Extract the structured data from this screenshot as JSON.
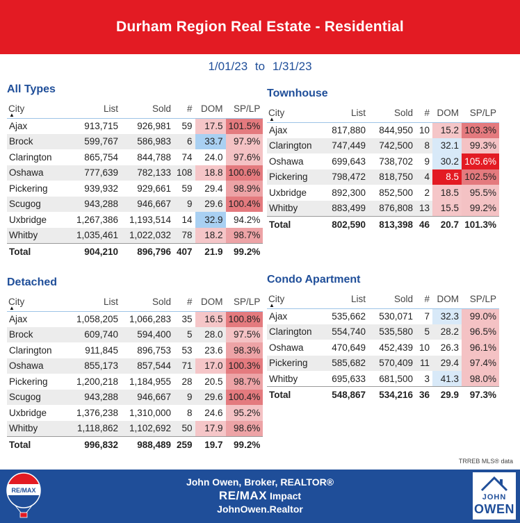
{
  "title": "Durham Region Real Estate - Residential",
  "date_from": "1/01/23",
  "date_to_word": "to",
  "date_to": "1/31/23",
  "columns": {
    "city": "City",
    "list": "List",
    "sold": "Sold",
    "count": "#",
    "dom": "DOM",
    "splp": "SP/LP"
  },
  "all_types": {
    "title": "All Types",
    "rows": [
      {
        "city": "Ajax",
        "list": "913,715",
        "sold": "926,981",
        "count": "59",
        "dom": "17.5",
        "splp": "101.5%",
        "dom_c": "dom-hi",
        "sp_c": "sp-3"
      },
      {
        "city": "Brock",
        "list": "599,767",
        "sold": "586,983",
        "count": "6",
        "dom": "33.7",
        "splp": "97.9%",
        "dom_c": "dom-lo",
        "sp_c": "sp-1"
      },
      {
        "city": "Clarington",
        "list": "865,754",
        "sold": "844,788",
        "count": "74",
        "dom": "24.0",
        "splp": "97.6%",
        "dom_c": "",
        "sp_c": "sp-1"
      },
      {
        "city": "Oshawa",
        "list": "777,639",
        "sold": "782,133",
        "count": "108",
        "dom": "18.8",
        "splp": "100.6%",
        "dom_c": "dom-hi",
        "sp_c": "sp-3"
      },
      {
        "city": "Pickering",
        "list": "939,932",
        "sold": "929,661",
        "count": "59",
        "dom": "29.4",
        "splp": "98.9%",
        "dom_c": "",
        "sp_c": "sp-2"
      },
      {
        "city": "Scugog",
        "list": "943,288",
        "sold": "946,667",
        "count": "9",
        "dom": "29.6",
        "splp": "100.4%",
        "dom_c": "",
        "sp_c": "sp-3"
      },
      {
        "city": "Uxbridge",
        "list": "1,267,386",
        "sold": "1,193,514",
        "count": "14",
        "dom": "32.9",
        "splp": "94.2%",
        "dom_c": "dom-lo",
        "sp_c": ""
      },
      {
        "city": "Whitby",
        "list": "1,035,461",
        "sold": "1,022,032",
        "count": "78",
        "dom": "18.2",
        "splp": "98.7%",
        "dom_c": "dom-hi",
        "sp_c": "sp-2"
      }
    ],
    "total": {
      "city": "Total",
      "list": "904,210",
      "sold": "896,796",
      "count": "407",
      "dom": "21.9",
      "splp": "99.2%"
    }
  },
  "detached": {
    "title": "Detached",
    "rows": [
      {
        "city": "Ajax",
        "list": "1,058,205",
        "sold": "1,066,283",
        "count": "35",
        "dom": "16.5",
        "splp": "100.8%",
        "dom_c": "dom-hi",
        "sp_c": "sp-3"
      },
      {
        "city": "Brock",
        "list": "609,740",
        "sold": "594,400",
        "count": "5",
        "dom": "28.0",
        "splp": "97.5%",
        "dom_c": "",
        "sp_c": "sp-1"
      },
      {
        "city": "Clarington",
        "list": "911,845",
        "sold": "896,753",
        "count": "53",
        "dom": "23.6",
        "splp": "98.3%",
        "dom_c": "",
        "sp_c": "sp-2"
      },
      {
        "city": "Oshawa",
        "list": "855,173",
        "sold": "857,544",
        "count": "71",
        "dom": "17.0",
        "splp": "100.3%",
        "dom_c": "dom-hi",
        "sp_c": "sp-3"
      },
      {
        "city": "Pickering",
        "list": "1,200,218",
        "sold": "1,184,955",
        "count": "28",
        "dom": "20.5",
        "splp": "98.7%",
        "dom_c": "",
        "sp_c": "sp-2"
      },
      {
        "city": "Scugog",
        "list": "943,288",
        "sold": "946,667",
        "count": "9",
        "dom": "29.6",
        "splp": "100.4%",
        "dom_c": "",
        "sp_c": "sp-3"
      },
      {
        "city": "Uxbridge",
        "list": "1,376,238",
        "sold": "1,310,000",
        "count": "8",
        "dom": "24.6",
        "splp": "95.2%",
        "dom_c": "",
        "sp_c": "sp-1"
      },
      {
        "city": "Whitby",
        "list": "1,118,862",
        "sold": "1,102,692",
        "count": "50",
        "dom": "17.9",
        "splp": "98.6%",
        "dom_c": "dom-hi",
        "sp_c": "sp-2"
      }
    ],
    "total": {
      "city": "Total",
      "list": "996,832",
      "sold": "988,489",
      "count": "259",
      "dom": "19.7",
      "splp": "99.2%"
    }
  },
  "townhouse": {
    "title": "Townhouse",
    "rows": [
      {
        "city": "Ajax",
        "list": "817,880",
        "sold": "844,950",
        "count": "10",
        "dom": "15.2",
        "splp": "103.3%",
        "dom_c": "dom-hi",
        "sp_c": "sp-3"
      },
      {
        "city": "Clarington",
        "list": "747,449",
        "sold": "742,500",
        "count": "8",
        "dom": "32.1",
        "splp": "99.3%",
        "dom_c": "dom-lo2",
        "sp_c": "sp-1"
      },
      {
        "city": "Oshawa",
        "list": "699,643",
        "sold": "738,702",
        "count": "9",
        "dom": "30.2",
        "splp": "105.6%",
        "dom_c": "dom-lo2",
        "sp_c": "sp-4"
      },
      {
        "city": "Pickering",
        "list": "798,472",
        "sold": "818,750",
        "count": "4",
        "dom": "8.5",
        "splp": "102.5%",
        "dom_c": "dom-red",
        "sp_c": "sp-3"
      },
      {
        "city": "Uxbridge",
        "list": "892,300",
        "sold": "852,500",
        "count": "2",
        "dom": "18.5",
        "splp": "95.5%",
        "dom_c": "dom-hi",
        "sp_c": "sp-1"
      },
      {
        "city": "Whitby",
        "list": "883,499",
        "sold": "876,808",
        "count": "13",
        "dom": "15.5",
        "splp": "99.2%",
        "dom_c": "dom-hi",
        "sp_c": "sp-1"
      }
    ],
    "total": {
      "city": "Total",
      "list": "802,590",
      "sold": "813,398",
      "count": "46",
      "dom": "20.7",
      "splp": "101.3%"
    }
  },
  "condo": {
    "title": "Condo Apartment",
    "rows": [
      {
        "city": "Ajax",
        "list": "535,662",
        "sold": "530,071",
        "count": "7",
        "dom": "32.3",
        "splp": "99.0%",
        "dom_c": "dom-lo2",
        "sp_c": "sp-1"
      },
      {
        "city": "Clarington",
        "list": "554,740",
        "sold": "535,580",
        "count": "5",
        "dom": "28.2",
        "splp": "96.5%",
        "dom_c": "",
        "sp_c": "sp-1"
      },
      {
        "city": "Oshawa",
        "list": "470,649",
        "sold": "452,439",
        "count": "10",
        "dom": "26.3",
        "splp": "96.1%",
        "dom_c": "",
        "sp_c": "sp-1"
      },
      {
        "city": "Pickering",
        "list": "585,682",
        "sold": "570,409",
        "count": "11",
        "dom": "29.4",
        "splp": "97.4%",
        "dom_c": "",
        "sp_c": "sp-1"
      },
      {
        "city": "Whitby",
        "list": "695,633",
        "sold": "681,500",
        "count": "3",
        "dom": "41.3",
        "splp": "98.0%",
        "dom_c": "dom-lo2",
        "sp_c": "sp-1"
      }
    ],
    "total": {
      "city": "Total",
      "list": "548,867",
      "sold": "534,216",
      "count": "36",
      "dom": "29.9",
      "splp": "97.3%"
    }
  },
  "mls_note": "TRREB MLS® data",
  "footer": {
    "line1": "John Owen, Broker, REALTOR®",
    "brand": "RE/MAX",
    "brand_suffix": "Impact",
    "line3": "JohnOwen.Realtor"
  },
  "logo_left_text": "RE/MAX",
  "logo_right": {
    "john": "JOHN",
    "owen": "OWEN"
  },
  "colors": {
    "header_red": "#e31b23",
    "brand_blue": "#1f4e99"
  }
}
